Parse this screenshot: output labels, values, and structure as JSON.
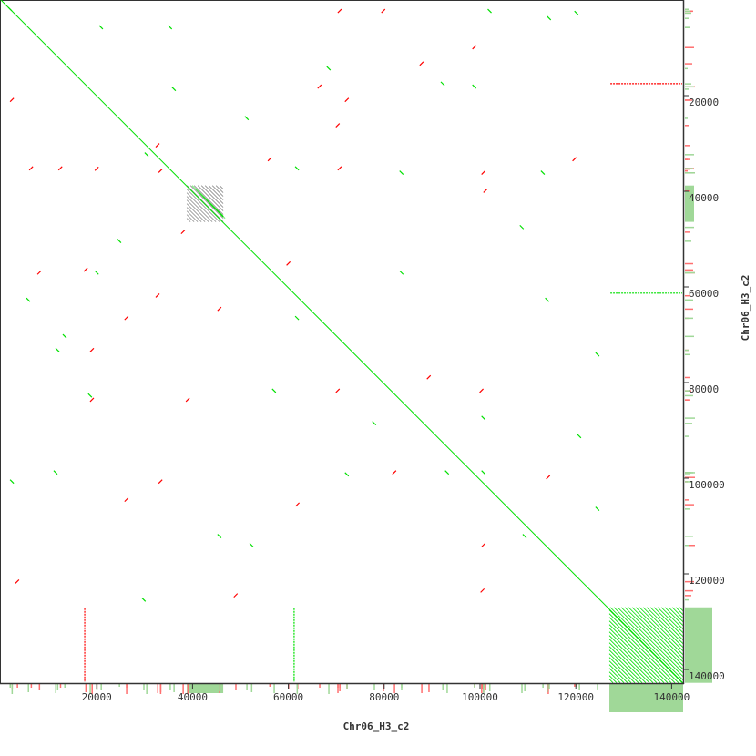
{
  "chart_data": {
    "type": "scatter",
    "title": "",
    "xlabel": "Chr06_H3_c2",
    "ylabel": "Chr06_H3_c2",
    "xlim": [
      0,
      142600
    ],
    "ylim": [
      0,
      142800
    ],
    "y_inverted": true,
    "grid": false,
    "xticks": [
      20000,
      40000,
      60000,
      80000,
      100000,
      120000,
      140000
    ],
    "yticks": [
      20000,
      40000,
      60000,
      80000,
      100000,
      120000,
      140000
    ],
    "colors": {
      "forward": "#00e000",
      "reverse": "#ff0000",
      "histogram_forward": "#a0d898",
      "histogram_reverse": "#ff7070",
      "axis": "#333333"
    },
    "diagonal": {
      "start": 0,
      "end": 142600,
      "strand": "forward"
    },
    "repeat_blocks": [
      {
        "x": [
          38800,
          46400
        ],
        "y": [
          38800,
          46400
        ]
      },
      {
        "x": [
          127000,
          142400
        ],
        "y": [
          127000,
          142800
        ]
      }
    ],
    "tandem_lines": [
      {
        "axis": "horizontal",
        "pos": 17500,
        "range": [
          127200,
          142400
        ],
        "strand": "reverse"
      },
      {
        "axis": "horizontal",
        "pos": 61300,
        "range": [
          127200,
          142400
        ],
        "strand": "forward"
      },
      {
        "axis": "vertical",
        "pos": 17500,
        "range": [
          127200,
          142800
        ],
        "strand": "reverse"
      },
      {
        "axis": "vertical",
        "pos": 61200,
        "range": [
          127200,
          142800
        ],
        "strand": "forward"
      }
    ],
    "reverse_hits": [
      [
        2300,
        20900
      ],
      [
        32700,
        30400
      ],
      [
        33300,
        35700
      ],
      [
        20000,
        35300
      ],
      [
        17700,
        56400
      ],
      [
        12400,
        35200
      ],
      [
        6300,
        35200
      ],
      [
        45600,
        64600
      ],
      [
        60000,
        55100
      ],
      [
        70700,
        35200
      ],
      [
        72200,
        20900
      ],
      [
        87800,
        13300
      ],
      [
        100700,
        36100
      ],
      [
        101100,
        39900
      ],
      [
        100300,
        81700
      ],
      [
        100700,
        114000
      ],
      [
        100500,
        123500
      ],
      [
        49000,
        124500
      ],
      [
        114200,
        99800
      ],
      [
        26200,
        104500
      ],
      [
        19000,
        73200
      ],
      [
        32700,
        61800
      ],
      [
        8000,
        57000
      ],
      [
        33300,
        100700
      ],
      [
        70300,
        26200
      ],
      [
        26200,
        66500
      ],
      [
        79800,
        2300
      ],
      [
        70700,
        2300
      ],
      [
        98800,
        9900
      ],
      [
        56100,
        33300
      ],
      [
        70300,
        81700
      ],
      [
        3400,
        121600
      ],
      [
        89300,
        78900
      ],
      [
        119700,
        33300
      ],
      [
        61900,
        105500
      ],
      [
        66500,
        18100
      ],
      [
        19000,
        83600
      ],
      [
        39000,
        83600
      ],
      [
        82100,
        98800
      ],
      [
        38000,
        48500
      ]
    ],
    "forward_hits": [
      [
        1900,
        1900
      ],
      [
        11800,
        73200
      ],
      [
        20000,
        57000
      ],
      [
        30400,
        32300
      ],
      [
        36100,
        18600
      ],
      [
        51300,
        24700
      ],
      [
        61800,
        35200
      ],
      [
        68400,
        14300
      ],
      [
        83600,
        57000
      ],
      [
        102000,
        2300
      ],
      [
        114400,
        3800
      ],
      [
        120100,
        2700
      ],
      [
        98800,
        18100
      ],
      [
        72200,
        99200
      ],
      [
        77900,
        88500
      ],
      [
        100700,
        87400
      ],
      [
        114000,
        62700
      ],
      [
        124500,
        74100
      ],
      [
        124500,
        106400
      ],
      [
        29800,
        125400
      ],
      [
        11400,
        98800
      ],
      [
        5700,
        62700
      ],
      [
        20900,
        5700
      ],
      [
        35300,
        5700
      ],
      [
        52300,
        114000
      ],
      [
        61800,
        66500
      ],
      [
        83600,
        36100
      ],
      [
        93100,
        98800
      ],
      [
        108700,
        47500
      ],
      [
        113100,
        36100
      ],
      [
        100700,
        98800
      ],
      [
        13300,
        70300
      ],
      [
        57000,
        81700
      ],
      [
        45600,
        112100
      ],
      [
        92200,
        17500
      ],
      [
        2300,
        100700
      ],
      [
        18600,
        82700
      ],
      [
        109300,
        112100
      ],
      [
        120700,
        91200
      ],
      [
        24700,
        50400
      ]
    ]
  }
}
